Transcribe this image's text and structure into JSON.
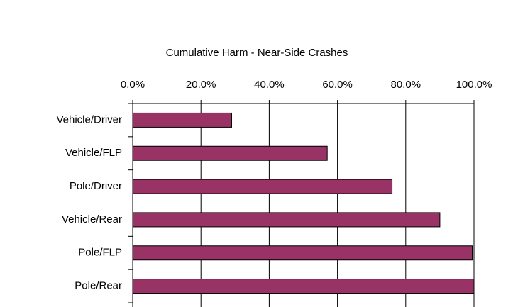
{
  "chart_data": {
    "type": "bar",
    "orientation": "horizontal",
    "title": "Cumulative  Harm - Near-Side Crashes",
    "categories": [
      "Vehicle/Driver",
      "Vehicle/FLP",
      "Pole/Driver",
      "Vehicle/Rear",
      "Pole/FLP",
      "Pole/Rear"
    ],
    "values": [
      29,
      57,
      76,
      90,
      99.5,
      100
    ],
    "color": "#993366",
    "xlim": [
      0,
      100
    ],
    "xticks": [
      {
        "value": 0,
        "label": "0.0%"
      },
      {
        "value": 20,
        "label": "20.0%"
      },
      {
        "value": 40,
        "label": "40.0%"
      },
      {
        "value": 60,
        "label": "60.0%"
      },
      {
        "value": 80,
        "label": "80.0%"
      },
      {
        "value": 100,
        "label": "100.0%"
      }
    ],
    "grid": true
  }
}
